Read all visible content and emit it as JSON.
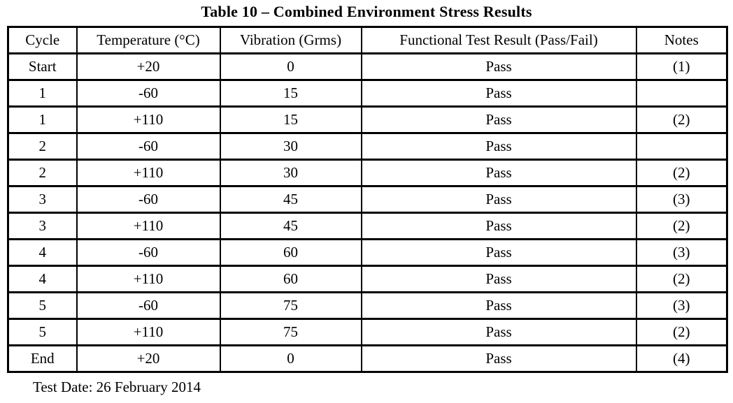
{
  "title": "Table 10 – Combined Environment Stress Results",
  "table": {
    "columns": [
      "Cycle",
      "Temperature (°C)",
      "Vibration (Grms)",
      "Functional Test Result (Pass/Fail)",
      "Notes"
    ],
    "rows": [
      [
        "Start",
        "+20",
        "0",
        "Pass",
        "(1)"
      ],
      [
        "1",
        "-60",
        "15",
        "Pass",
        ""
      ],
      [
        "1",
        "+110",
        "15",
        "Pass",
        "(2)"
      ],
      [
        "2",
        "-60",
        "30",
        "Pass",
        ""
      ],
      [
        "2",
        "+110",
        "30",
        "Pass",
        "(2)"
      ],
      [
        "3",
        "-60",
        "45",
        "Pass",
        "(3)"
      ],
      [
        "3",
        "+110",
        "45",
        "Pass",
        "(2)"
      ],
      [
        "4",
        "-60",
        "60",
        "Pass",
        "(3)"
      ],
      [
        "4",
        "+110",
        "60",
        "Pass",
        "(2)"
      ],
      [
        "5",
        "-60",
        "75",
        "Pass",
        "(3)"
      ],
      [
        "5",
        "+110",
        "75",
        "Pass",
        "(2)"
      ],
      [
        "End",
        "+20",
        "0",
        "Pass",
        "(4)"
      ]
    ]
  },
  "footer": {
    "test_date": "Test Date: 26 February 2014"
  },
  "colors": {
    "text": "#000000",
    "background": "#ffffff",
    "border": "#000000"
  }
}
